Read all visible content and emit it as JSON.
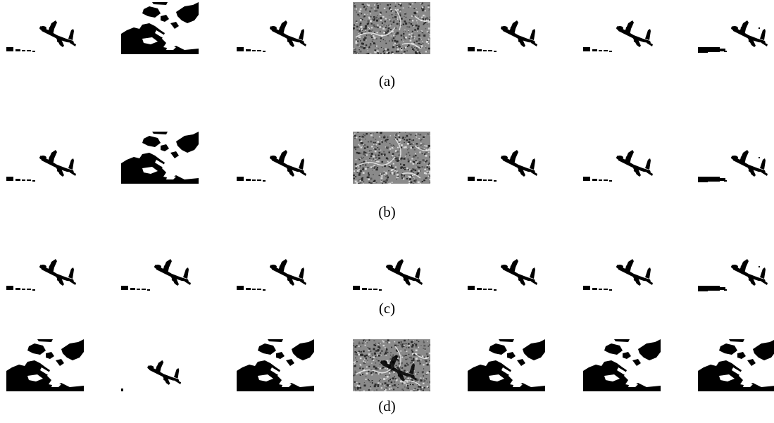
{
  "figure": {
    "rows": [
      {
        "label": "(a)",
        "panels": [
          {
            "variant": "plane-clean"
          },
          {
            "variant": "black-mask"
          },
          {
            "variant": "plane-clean"
          },
          {
            "variant": "noise"
          },
          {
            "variant": "plane-clean"
          },
          {
            "variant": "plane-clean"
          },
          {
            "variant": "plane-smudge"
          }
        ]
      },
      {
        "label": "(b)",
        "panels": [
          {
            "variant": "plane-clean"
          },
          {
            "variant": "black-mask"
          },
          {
            "variant": "plane-clean"
          },
          {
            "variant": "noise"
          },
          {
            "variant": "plane-clean"
          },
          {
            "variant": "plane-clean"
          },
          {
            "variant": "plane-smudge"
          }
        ]
      },
      {
        "label": "(c)",
        "panels": [
          {
            "variant": "plane-clean"
          },
          {
            "variant": "plane-clean"
          },
          {
            "variant": "plane-clean"
          },
          {
            "variant": "plane-clean"
          },
          {
            "variant": "plane-clean"
          },
          {
            "variant": "plane-clean"
          },
          {
            "variant": "plane-smudge"
          }
        ]
      },
      {
        "label": "(d)",
        "panels": [
          {
            "variant": "black-mask"
          },
          {
            "variant": "plane-small"
          },
          {
            "variant": "black-mask"
          },
          {
            "variant": "noise-plane"
          },
          {
            "variant": "black-mask"
          },
          {
            "variant": "black-mask"
          },
          {
            "variant": "black-mask"
          }
        ]
      }
    ],
    "colors": {
      "background": "#ffffff",
      "ink": "#000000",
      "noise_mid": "#8a8a8a"
    }
  }
}
